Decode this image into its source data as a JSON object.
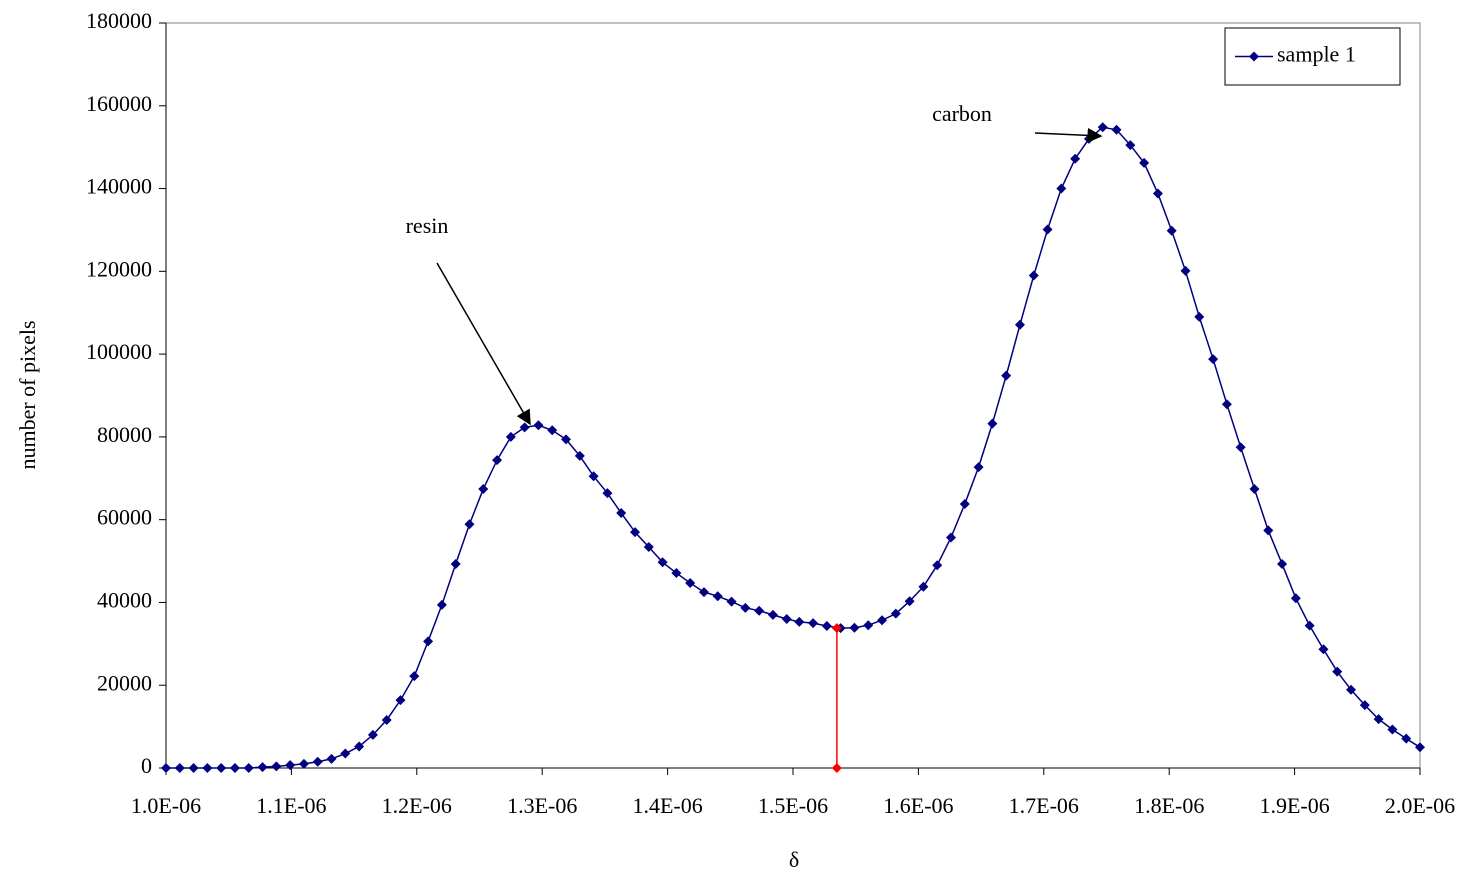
{
  "chart_data": {
    "type": "line",
    "x_label": "δ",
    "y_label": "number of pixels",
    "xlim": [
      1e-06,
      2e-06
    ],
    "xticks": [
      {
        "value": 1e-06,
        "label": "1.0E-06"
      },
      {
        "value": 1.1e-06,
        "label": "1.1E-06"
      },
      {
        "value": 1.2e-06,
        "label": "1.2E-06"
      },
      {
        "value": 1.3e-06,
        "label": "1.3E-06"
      },
      {
        "value": 1.4e-06,
        "label": "1.4E-06"
      },
      {
        "value": 1.5e-06,
        "label": "1.5E-06"
      },
      {
        "value": 1.6e-06,
        "label": "1.6E-06"
      },
      {
        "value": 1.7e-06,
        "label": "1.7E-06"
      },
      {
        "value": 1.8e-06,
        "label": "1.8E-06"
      },
      {
        "value": 1.9e-06,
        "label": "1.9E-06"
      },
      {
        "value": 2e-06,
        "label": "2.0E-06"
      }
    ],
    "ylim": [
      0,
      180000
    ],
    "yticks": [
      0,
      20000,
      40000,
      60000,
      80000,
      100000,
      120000,
      140000,
      160000,
      180000
    ],
    "legend": "top-right",
    "annotations": [
      "resin",
      "carbon"
    ],
    "x": [
      1e-06,
      1.011e-06,
      1.022e-06,
      1.033e-06,
      1.044e-06,
      1.055e-06,
      1.066e-06,
      1.077e-06,
      1.088e-06,
      1.099e-06,
      1.11e-06,
      1.121e-06,
      1.132e-06,
      1.143e-06,
      1.154e-06,
      1.165e-06,
      1.176e-06,
      1.187e-06,
      1.198e-06,
      1.209e-06,
      1.22e-06,
      1.231e-06,
      1.242e-06,
      1.253e-06,
      1.264e-06,
      1.275e-06,
      1.286e-06,
      1.297e-06,
      1.308e-06,
      1.319e-06,
      1.33e-06,
      1.341e-06,
      1.352e-06,
      1.363e-06,
      1.374e-06,
      1.385e-06,
      1.396e-06,
      1.407e-06,
      1.418e-06,
      1.429e-06,
      1.44e-06,
      1.451e-06,
      1.462e-06,
      1.473e-06,
      1.484e-06,
      1.495e-06,
      1.505e-06,
      1.516e-06,
      1.527e-06,
      1.538e-06,
      1.549e-06,
      1.56e-06,
      1.571e-06,
      1.582e-06,
      1.593e-06,
      1.604e-06,
      1.615e-06,
      1.626e-06,
      1.637e-06,
      1.648e-06,
      1.659e-06,
      1.67e-06,
      1.681e-06,
      1.692e-06,
      1.703e-06,
      1.714e-06,
      1.725e-06,
      1.736e-06,
      1.747e-06,
      1.758e-06,
      1.769e-06,
      1.78e-06,
      1.791e-06,
      1.802e-06,
      1.813e-06,
      1.824e-06,
      1.835e-06,
      1.846e-06,
      1.857e-06,
      1.868e-06,
      1.879e-06,
      1.89e-06,
      1.901e-06,
      1.912e-06,
      1.923e-06,
      1.934e-06,
      1.945e-06,
      1.956e-06,
      1.967e-06,
      1.978e-06,
      1.989e-06,
      2e-06
    ],
    "series": [
      {
        "name": "sample 1",
        "color": "#000080",
        "marker": "diamond",
        "values": [
          0,
          0,
          0,
          0,
          0,
          0,
          0,
          200,
          400,
          700,
          1000,
          1500,
          2200,
          3500,
          5200,
          8000,
          11600,
          16400,
          22200,
          30600,
          39400,
          49300,
          58900,
          67400,
          74400,
          80000,
          82300,
          82800,
          81600,
          79400,
          75400,
          70500,
          66400,
          61600,
          57000,
          53400,
          49700,
          47100,
          44700,
          42500,
          41500,
          40200,
          38700,
          38000,
          37000,
          36000,
          35300,
          35000,
          34300,
          33800,
          33900,
          34500,
          35700,
          37300,
          40300,
          43800,
          49000,
          55700,
          63800,
          72700,
          83200,
          94800,
          107100,
          119000,
          130100,
          140000,
          147200,
          152000,
          154800,
          154200,
          150500,
          146200,
          138800,
          129800,
          120100,
          109000,
          98800,
          87900,
          77500,
          67400,
          57400,
          49300,
          41000,
          34400,
          28700,
          23300,
          18900,
          15200,
          11800,
          9300,
          7100,
          5000
        ]
      },
      {
        "color": "#ff0000",
        "marker": "diamond",
        "x": [
          1.535e-06,
          1.535e-06
        ],
        "values": [
          0,
          33800
        ]
      }
    ]
  }
}
